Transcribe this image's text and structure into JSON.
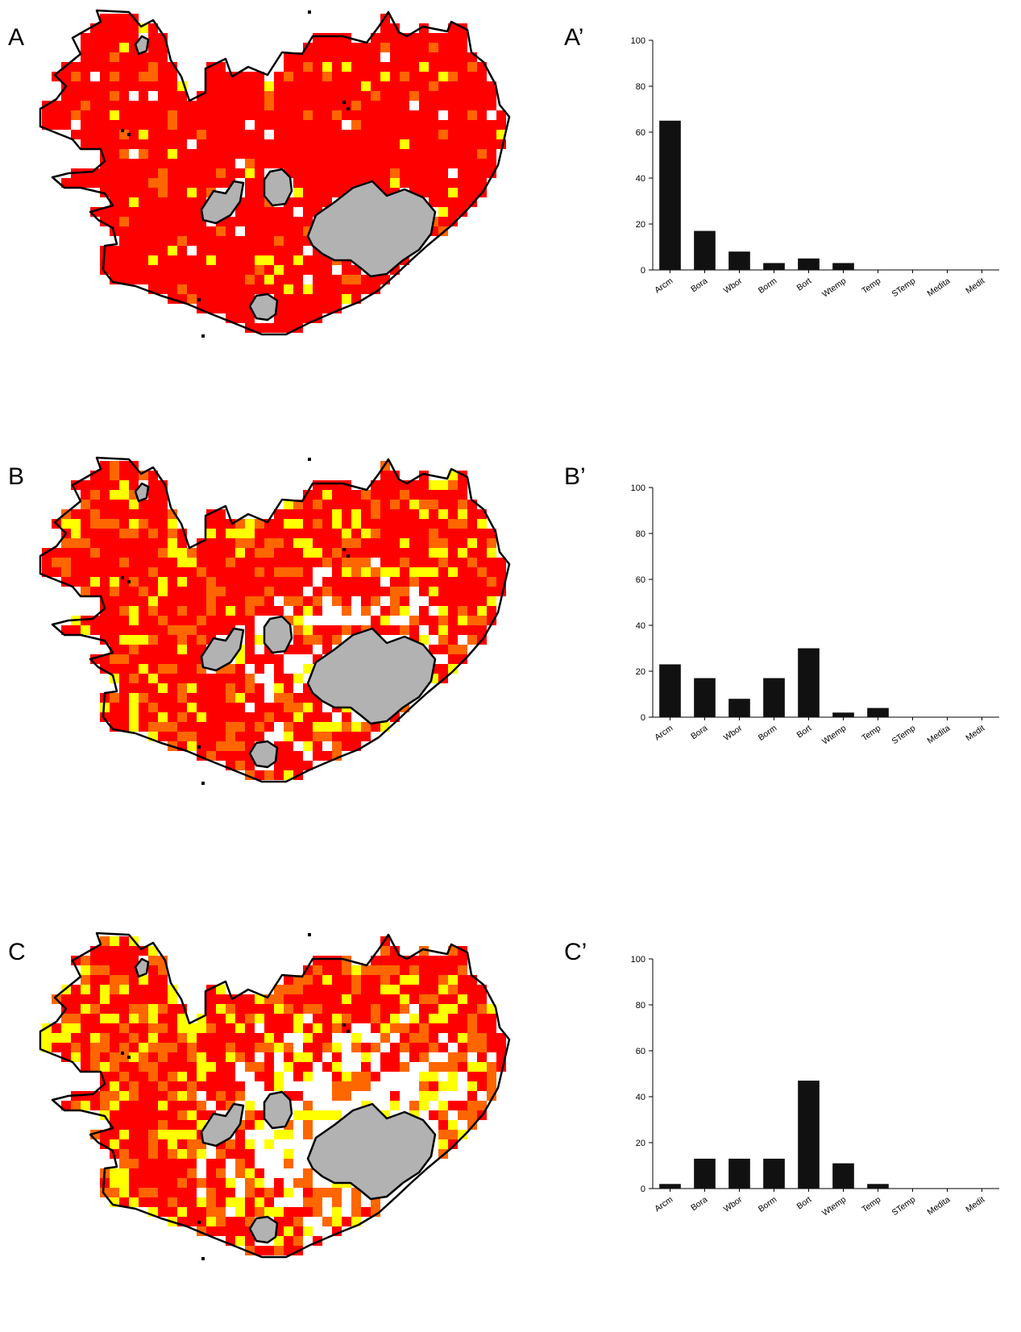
{
  "panels": [
    {
      "map_label": "A",
      "chart_label": "A’"
    },
    {
      "map_label": "B",
      "chart_label": "B’"
    },
    {
      "map_label": "C",
      "chart_label": "C’"
    }
  ],
  "colors": {
    "red": "#ff0000",
    "orange": "#ff6600",
    "yellow": "#ffff00",
    "glacier": "#b2b2b2",
    "outline": "#000000",
    "bar": "#111111"
  },
  "chart_data": [
    {
      "type": "bar",
      "categories": [
        "Arcm",
        "Bora",
        "Wbor",
        "Borm",
        "Bort",
        "Wtemp",
        "Temp",
        "STemp",
        "Medita",
        "Medit"
      ],
      "values": [
        65,
        17,
        8,
        3,
        5,
        3,
        0,
        0,
        0,
        0
      ],
      "ylim": [
        0,
        100
      ],
      "yticks": [
        0,
        20,
        40,
        60,
        80,
        100
      ]
    },
    {
      "type": "bar",
      "categories": [
        "Arcm",
        "Bora",
        "Wbor",
        "Borm",
        "Bort",
        "Wtemp",
        "Temp",
        "STemp",
        "Medita",
        "Medit"
      ],
      "values": [
        23,
        17,
        8,
        17,
        30,
        2,
        4,
        0,
        0,
        0
      ],
      "ylim": [
        0,
        100
      ],
      "yticks": [
        0,
        20,
        40,
        60,
        80,
        100
      ]
    },
    {
      "type": "bar",
      "categories": [
        "Arcm",
        "Bora",
        "Wbor",
        "Borm",
        "Bort",
        "Wtemp",
        "Temp",
        "STemp",
        "Medita",
        "Medit"
      ],
      "values": [
        2,
        13,
        13,
        13,
        47,
        11,
        2,
        0,
        0,
        0
      ],
      "ylim": [
        0,
        100
      ],
      "yticks": [
        0,
        20,
        40,
        60,
        80,
        100
      ]
    }
  ]
}
